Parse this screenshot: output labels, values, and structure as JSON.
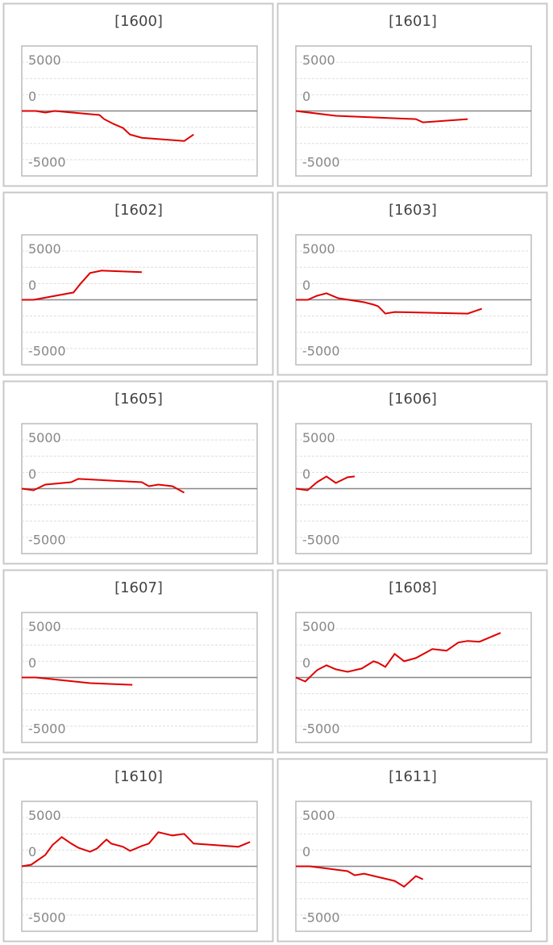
{
  "chart_data": [
    {
      "type": "line",
      "title": "[1600]",
      "x": [
        0,
        6,
        10,
        14,
        33,
        35,
        39,
        43,
        46,
        51,
        69,
        73
      ],
      "values": [
        0,
        0,
        -250,
        0,
        -625,
        -1250,
        -2000,
        -2625,
        -3625,
        -4125,
        -4625,
        -3625
      ],
      "color": "#e00000",
      "xlim": [
        0,
        100
      ],
      "ylim": [
        -10000,
        10000
      ],
      "yticks": [
        -5000,
        0,
        5000
      ],
      "minor_yticks": [
        -7500,
        -2500,
        2500,
        7500
      ],
      "grid": true
    },
    {
      "type": "line",
      "title": "[1601]",
      "x": [
        0,
        17,
        51,
        54,
        73
      ],
      "values": [
        0,
        -750,
        -1250,
        -1750,
        -1250
      ],
      "color": "#e00000",
      "xlim": [
        0,
        100
      ],
      "ylim": [
        -10000,
        10000
      ],
      "yticks": [
        -5000,
        0,
        5000
      ],
      "minor_yticks": [
        -7500,
        -2500,
        2500,
        7500
      ],
      "grid": true
    },
    {
      "type": "line",
      "title": "[1602]",
      "x": [
        0,
        5,
        22,
        25,
        29,
        34,
        51
      ],
      "values": [
        0,
        0,
        1125,
        2500,
        4125,
        4500,
        4250
      ],
      "color": "#e00000",
      "xlim": [
        0,
        100
      ],
      "ylim": [
        -10000,
        10000
      ],
      "yticks": [
        -5000,
        0,
        5000
      ],
      "minor_yticks": [
        -7500,
        -2500,
        2500,
        7500
      ],
      "grid": true
    },
    {
      "type": "line",
      "title": "[1603]",
      "x": [
        0,
        5,
        9,
        13,
        18,
        29,
        33,
        35,
        38,
        42,
        73,
        79
      ],
      "values": [
        0,
        0,
        625,
        1000,
        250,
        -375,
        -750,
        -1000,
        -2125,
        -1875,
        -2125,
        -1375
      ],
      "color": "#e00000",
      "xlim": [
        0,
        100
      ],
      "ylim": [
        -10000,
        10000
      ],
      "yticks": [
        -5000,
        0,
        5000
      ],
      "minor_yticks": [
        -7500,
        -2500,
        2500,
        7500
      ],
      "grid": true
    },
    {
      "type": "line",
      "title": "[1605]",
      "x": [
        0,
        5,
        10,
        21,
        24,
        51,
        54,
        58,
        64,
        69
      ],
      "values": [
        0,
        -250,
        625,
        1000,
        1500,
        1000,
        375,
        625,
        375,
        -625
      ],
      "color": "#e00000",
      "xlim": [
        0,
        100
      ],
      "ylim": [
        -10000,
        10000
      ],
      "yticks": [
        -5000,
        0,
        5000
      ],
      "minor_yticks": [
        -7500,
        -2500,
        2500,
        7500
      ],
      "grid": true
    },
    {
      "type": "line",
      "title": "[1606]",
      "x": [
        0,
        5,
        9,
        13,
        17,
        22,
        25
      ],
      "values": [
        0,
        -250,
        1000,
        1875,
        875,
        1750,
        1875
      ],
      "color": "#e00000",
      "xlim": [
        0,
        100
      ],
      "ylim": [
        -10000,
        10000
      ],
      "yticks": [
        -5000,
        0,
        5000
      ],
      "minor_yticks": [
        -7500,
        -2500,
        2500,
        7500
      ],
      "grid": true
    },
    {
      "type": "line",
      "title": "[1607]",
      "x": [
        0,
        6,
        29,
        47
      ],
      "values": [
        0,
        0,
        -875,
        -1125
      ],
      "color": "#e00000",
      "xlim": [
        0,
        100
      ],
      "ylim": [
        -10000,
        10000
      ],
      "yticks": [
        -5000,
        0,
        5000
      ],
      "minor_yticks": [
        -7500,
        -2500,
        2500,
        7500
      ],
      "grid": true
    },
    {
      "type": "line",
      "title": "[1608]",
      "x": [
        0,
        4,
        9,
        13,
        17,
        22,
        28,
        33,
        35,
        38,
        42,
        46,
        51,
        58,
        64,
        69,
        73,
        78,
        87
      ],
      "values": [
        0,
        -625,
        1125,
        1875,
        1250,
        875,
        1375,
        2500,
        2250,
        1625,
        3625,
        2500,
        3000,
        4375,
        4125,
        5375,
        5625,
        5500,
        6875
      ],
      "color": "#e00000",
      "xlim": [
        0,
        100
      ],
      "ylim": [
        -10000,
        10000
      ],
      "yticks": [
        -5000,
        0,
        5000
      ],
      "minor_yticks": [
        -7500,
        -2500,
        2500,
        7500
      ],
      "grid": true
    },
    {
      "type": "line",
      "title": "[1610]",
      "x": [
        0,
        4,
        10,
        13,
        17,
        21,
        24,
        29,
        32,
        36,
        38,
        43,
        46,
        51,
        54,
        58,
        64,
        69,
        73,
        92,
        97
      ],
      "values": [
        0,
        250,
        1750,
        3250,
        4500,
        3500,
        2875,
        2250,
        2750,
        4125,
        3500,
        3000,
        2375,
        3125,
        3500,
        5250,
        4750,
        5000,
        3500,
        3000,
        3750
      ],
      "color": "#e00000",
      "xlim": [
        0,
        100
      ],
      "ylim": [
        -10000,
        10000
      ],
      "yticks": [
        -5000,
        0,
        5000
      ],
      "minor_yticks": [
        -7500,
        -2500,
        2500,
        7500
      ],
      "grid": true
    },
    {
      "type": "line",
      "title": "[1611]",
      "x": [
        0,
        6,
        22,
        25,
        29,
        42,
        46,
        51,
        54
      ],
      "values": [
        0,
        0,
        -750,
        -1375,
        -1125,
        -2250,
        -3125,
        -1500,
        -2000
      ],
      "color": "#e00000",
      "xlim": [
        0,
        100
      ],
      "ylim": [
        -10000,
        10000
      ],
      "yticks": [
        -5000,
        0,
        5000
      ],
      "minor_yticks": [
        -7500,
        -2500,
        2500,
        7500
      ],
      "grid": true
    }
  ]
}
